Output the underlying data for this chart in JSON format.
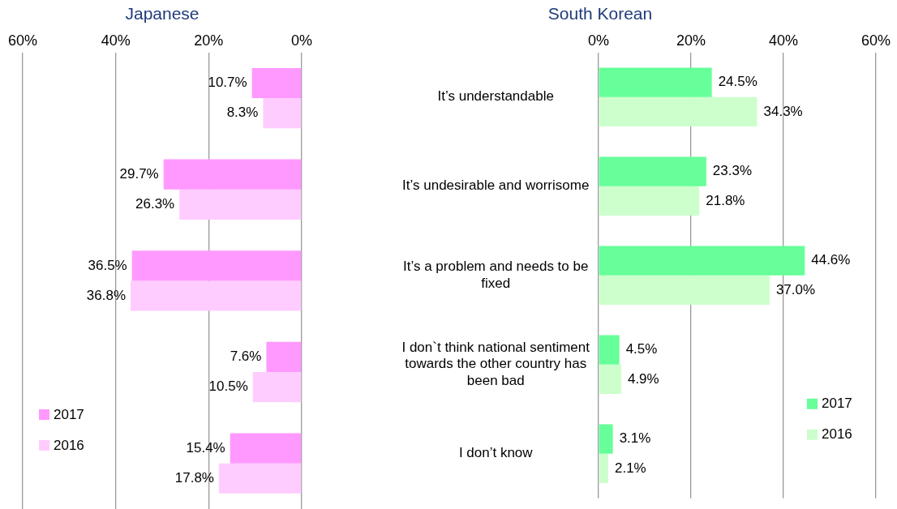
{
  "chart_data": [
    {
      "type": "bar",
      "orientation": "horizontal",
      "title": "Japanese",
      "categories": [
        null,
        null,
        null,
        null,
        null
      ],
      "series": [
        {
          "name": "2017",
          "color": "#ff99ff",
          "values": [
            10.7,
            29.7,
            36.5,
            7.6,
            15.4
          ],
          "value_labels": [
            "10.7%",
            "29.7%",
            "36.5%",
            "7.6%",
            "15.4%"
          ]
        },
        {
          "name": "2016",
          "color": "#ffccff",
          "values": [
            8.3,
            26.3,
            36.8,
            10.5,
            17.8
          ],
          "value_labels": [
            "8.3%",
            "26.3%",
            "36.8%",
            "10.5%",
            "17.8%"
          ]
        }
      ],
      "xlim": [
        60,
        0
      ],
      "xticks": [
        {
          "value": 60,
          "label": "60%"
        },
        {
          "value": 40,
          "label": "40%"
        },
        {
          "value": 20,
          "label": "20%"
        },
        {
          "value": 0,
          "label": "0%"
        }
      ],
      "grid": "x",
      "legend": "bottom left",
      "tick_labels": "x"
    },
    {
      "type": "bar",
      "orientation": "horizontal",
      "title": "South Korean",
      "categories": [
        "It’s understandable",
        "It’s undesirable and worrisome",
        "It’s a problem and needs to be fixed",
        "I don`t think national sentiment towards the other country has been bad",
        "I don’t know"
      ],
      "series": [
        {
          "name": "2017",
          "color": "#66ff99",
          "values": [
            24.5,
            23.3,
            44.6,
            4.5,
            3.1
          ],
          "value_labels": [
            "24.5%",
            "23.3%",
            "44.6%",
            "4.5%",
            "3.1%"
          ]
        },
        {
          "name": "2016",
          "color": "#ccffcc",
          "values": [
            34.3,
            21.8,
            37.0,
            4.9,
            2.1
          ],
          "value_labels": [
            "34.3%",
            "21.8%",
            "37.0%",
            "4.9%",
            "2.1%"
          ]
        }
      ],
      "xlim": [
        0,
        60
      ],
      "xticks": [
        {
          "value": 0,
          "label": "0%"
        },
        {
          "value": 20,
          "label": "20%"
        },
        {
          "value": 40,
          "label": "40%"
        },
        {
          "value": 60,
          "label": "60%"
        }
      ],
      "grid": "x",
      "legend": "bottom right"
    }
  ]
}
